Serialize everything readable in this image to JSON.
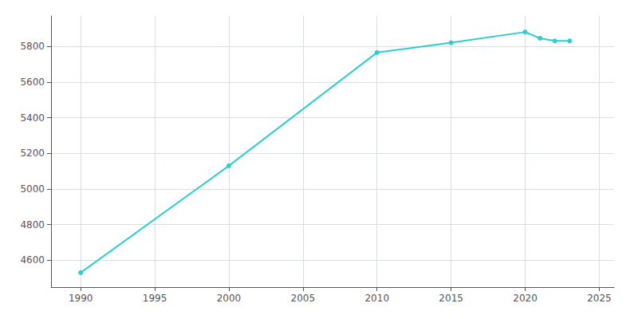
{
  "chart_data": {
    "type": "line",
    "x": [
      1990,
      2000,
      2010,
      2015,
      2020,
      2021,
      2022,
      2023
    ],
    "values": [
      4531,
      5130,
      5765,
      5820,
      5880,
      5845,
      5830,
      5830
    ],
    "color": "#2ECECE",
    "marker": "circle",
    "xlim": [
      1988,
      2026
    ],
    "xticks": [
      1990,
      1995,
      2000,
      2005,
      2010,
      2015,
      2020,
      2025
    ],
    "ylim": [
      4450,
      5970
    ],
    "yticks": [
      4600,
      4800,
      5000,
      5200,
      5400,
      5600,
      5800
    ],
    "grid": true
  }
}
